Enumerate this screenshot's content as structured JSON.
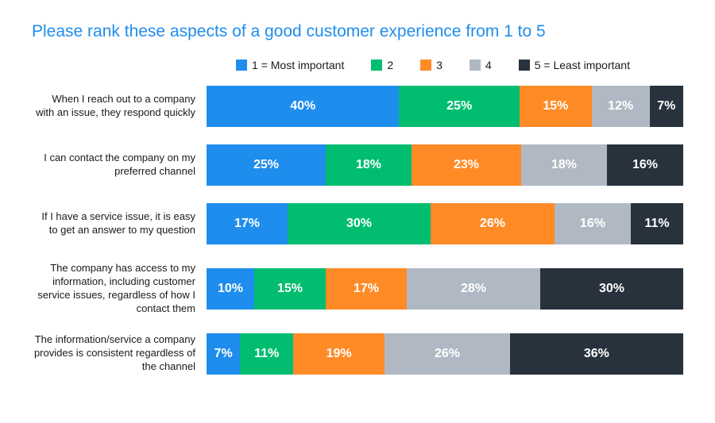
{
  "title": "Please rank these aspects of a good customer experience from 1 to 5",
  "title_color": "#1f8ded",
  "colors": {
    "blue": "#1f8ded",
    "green": "#00bd70",
    "orange": "#ff8b27",
    "grey": "#b0b9c3",
    "dark": "#27323d"
  },
  "legend": [
    {
      "label": "1 = Most important",
      "color_key": "blue"
    },
    {
      "label": "2",
      "color_key": "green"
    },
    {
      "label": "3",
      "color_key": "orange"
    },
    {
      "label": "4",
      "color_key": "grey"
    },
    {
      "label": "5 = Least important",
      "color_key": "dark"
    }
  ],
  "chart": {
    "type": "stacked-bar-horizontal",
    "value_suffix": "%",
    "rows": [
      {
        "label": "When I reach out to a company with an issue, they respond quickly",
        "values": [
          {
            "v": 40,
            "c": "blue",
            "show_suffix_gap": false
          },
          {
            "v": 25,
            "c": "green"
          },
          {
            "v": 15,
            "c": "orange"
          },
          {
            "v": 12,
            "c": "grey"
          },
          {
            "v": 7,
            "c": "dark"
          }
        ]
      },
      {
        "label": "I can contact the company on my preferred channel",
        "values": [
          {
            "v": 25,
            "c": "blue"
          },
          {
            "v": 18,
            "c": "green"
          },
          {
            "v": 23,
            "c": "orange"
          },
          {
            "v": 18,
            "c": "grey"
          },
          {
            "v": 16,
            "c": "dark"
          }
        ]
      },
      {
        "label": "If I have a service issue, it is easy to get an answer to my question",
        "values": [
          {
            "v": 17,
            "c": "blue"
          },
          {
            "v": 30,
            "c": "green"
          },
          {
            "v": 26,
            "c": "orange"
          },
          {
            "v": 16,
            "c": "grey"
          },
          {
            "v": 11,
            "c": "dark"
          }
        ]
      },
      {
        "label": "The company has access to my information, including customer service issues, regardless of how I contact them",
        "values": [
          {
            "v": 10,
            "c": "blue"
          },
          {
            "v": 15,
            "c": "green"
          },
          {
            "v": 17,
            "c": "orange"
          },
          {
            "v": 28,
            "c": "grey"
          },
          {
            "v": 30,
            "c": "dark"
          }
        ]
      },
      {
        "label": "The information/service a company provides is consistent regardless of the channel",
        "values": [
          {
            "v": 7,
            "c": "blue"
          },
          {
            "v": 11,
            "c": "green"
          },
          {
            "v": 19,
            "c": "orange"
          },
          {
            "v": 26,
            "c": "grey"
          },
          {
            "v": 36,
            "c": "dark"
          }
        ]
      }
    ]
  }
}
